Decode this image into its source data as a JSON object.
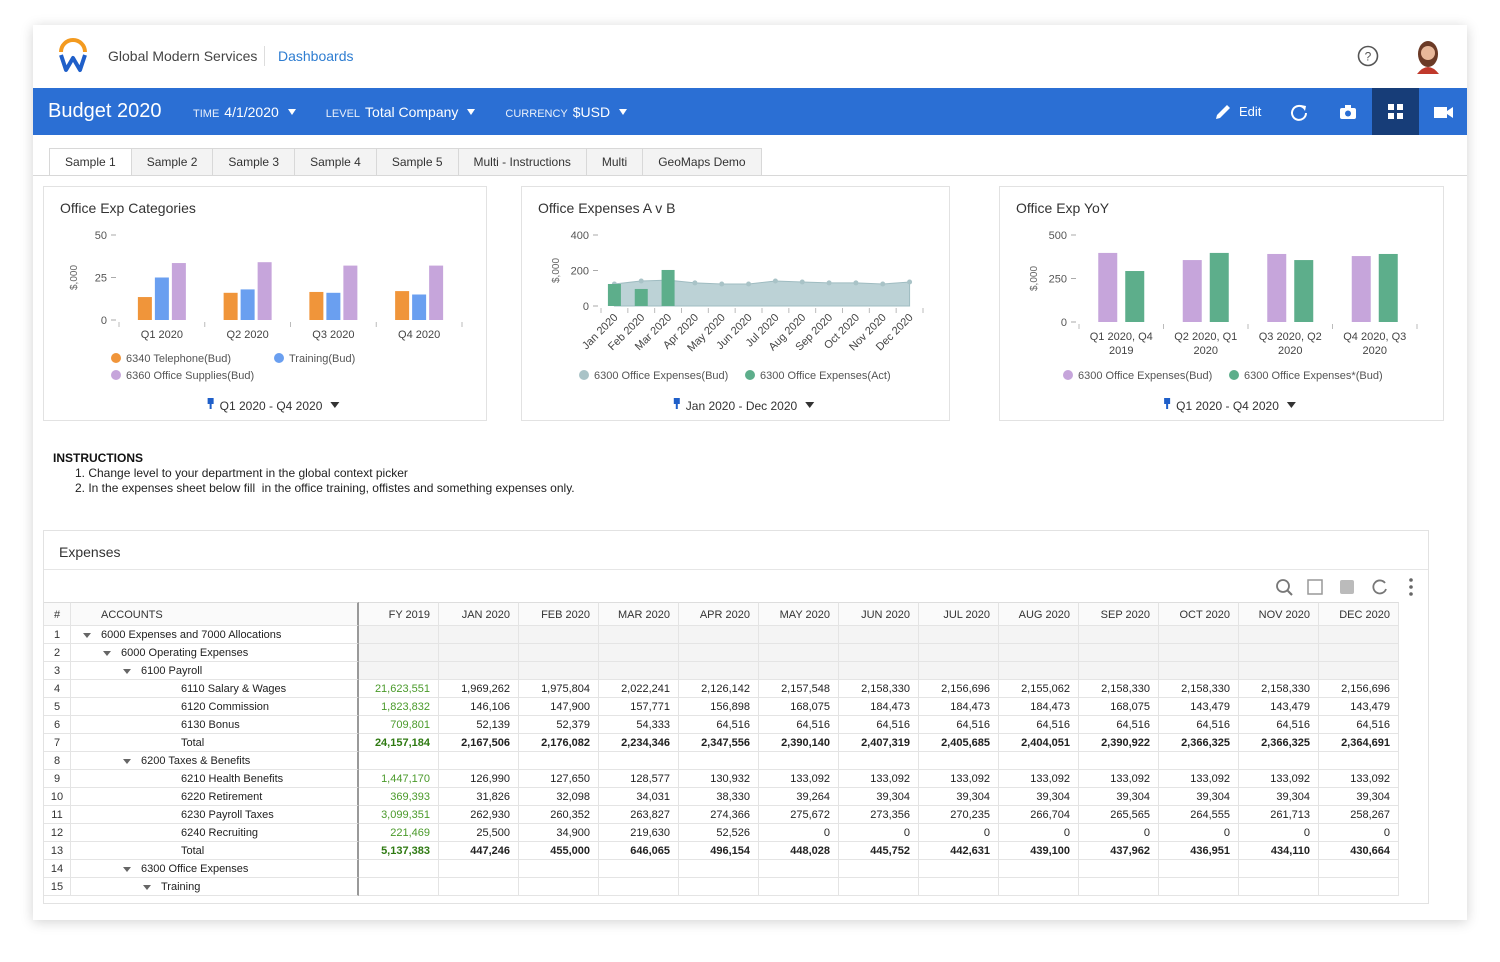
{
  "header": {
    "company": "Global Modern Services",
    "link": "Dashboards"
  },
  "toolbar": {
    "title": "Budget 2020",
    "filters": [
      {
        "label": "TIME",
        "value": "4/1/2020"
      },
      {
        "label": "LEVEL",
        "value": "Total Company"
      },
      {
        "label": "CURRENCY",
        "value": "$USD"
      }
    ],
    "edit": "Edit"
  },
  "tabs": [
    "Sample 1",
    "Sample 2",
    "Sample 3",
    "Sample 4",
    "Sample 5",
    "Multi - Instructions",
    "Multi",
    "GeoMaps Demo"
  ],
  "chart_data": [
    {
      "type": "bar",
      "title": "Office Exp Categories",
      "ylabel": "$,000",
      "categories": [
        "Q1 2020",
        "Q2 2020",
        "Q3 2020",
        "Q4 2020"
      ],
      "series": [
        {
          "name": "6340 Telephone(Bud)",
          "color": "#f0953a",
          "values": [
            13.5,
            16,
            16.5,
            17
          ]
        },
        {
          "name": "Training(Bud)",
          "color": "#6a9ff0",
          "values": [
            25,
            18,
            16,
            15
          ]
        },
        {
          "name": "6360 Office Supplies(Bud)",
          "color": "#c6a5db",
          "values": [
            33.5,
            34,
            32,
            32
          ]
        }
      ],
      "ylim": [
        0,
        50
      ],
      "yticks": [
        0,
        25,
        50
      ],
      "footer": "Q1 2020 - Q4 2020"
    },
    {
      "type": "combo",
      "title": "Office Expenses A v B",
      "ylabel": "$,000",
      "categories": [
        "Jan 2020",
        "Feb 2020",
        "Mar 2020",
        "Apr 2020",
        "May 2020",
        "Jun 2020",
        "Jul 2020",
        "Aug 2020",
        "Sep 2020",
        "Oct 2020",
        "Nov 2020",
        "Dec 2020"
      ],
      "series": [
        {
          "name": "6300 Office Expenses(Bud)",
          "type": "area",
          "color": "#bcd2d6",
          "values": [
            124,
            141,
            146,
            130,
            124,
            124,
            141,
            135,
            130,
            130,
            124,
            135
          ]
        },
        {
          "name": "6300 Office Expenses(Act)",
          "type": "bar",
          "color": "#5dae8b",
          "values": [
            124,
            96,
            203,
            null,
            null,
            null,
            null,
            null,
            null,
            null,
            null,
            null
          ]
        }
      ],
      "ylim": [
        0,
        400
      ],
      "yticks": [
        0,
        200,
        400
      ],
      "footer": "Jan 2020 - Dec 2020"
    },
    {
      "type": "bar",
      "title": "Office Exp YoY",
      "ylabel": "$,000",
      "categories": [
        "Q1 2020, Q4 2019",
        "Q2 2020, Q1 2020",
        "Q3 2020, Q2 2020",
        "Q4 2020, Q3 2020"
      ],
      "series": [
        {
          "name": "6300 Office Expenses(Bud)",
          "color": "#c6a5db",
          "values": [
            397,
            356,
            391,
            379
          ]
        },
        {
          "name": "6300 Office Expenses*(Bud)",
          "color": "#5dae8b",
          "values": [
            293,
            397,
            356,
            391
          ]
        }
      ],
      "ylim": [
        0,
        500
      ],
      "yticks": [
        0,
        250,
        500
      ],
      "footer": "Q1 2020 - Q4 2020"
    }
  ],
  "instructions": {
    "title": "INSTRUCTIONS",
    "items": [
      "1. Change level to your department in the global context picker",
      "2. In the expenses sheet below fill  in the office training, offistes and something expenses only."
    ]
  },
  "table": {
    "title": "Expenses",
    "columns": [
      "#",
      "ACCOUNTS",
      "FY 2019",
      "JAN 2020",
      "FEB 2020",
      "MAR 2020",
      "APR 2020",
      "MAY 2020",
      "JUN 2020",
      "JUL 2020",
      "AUG 2020",
      "SEP 2020",
      "OCT 2020",
      "NOV 2020",
      "DEC 2020"
    ],
    "rows": [
      [
        "1",
        "6000 Expenses and 7000 Allocations"
      ],
      [
        "2",
        "6000 Operating Expenses"
      ],
      [
        "3",
        "6100 Payroll"
      ],
      [
        "4",
        "6110 Salary & Wages",
        "21,623,551",
        "1,969,262",
        "1,975,804",
        "2,022,241",
        "2,126,142",
        "2,157,548",
        "2,158,330",
        "2,156,696",
        "2,155,062",
        "2,158,330",
        "2,158,330",
        "2,158,330",
        "2,156,696"
      ],
      [
        "5",
        "6120 Commission",
        "1,823,832",
        "146,106",
        "147,900",
        "157,771",
        "156,898",
        "168,075",
        "184,473",
        "184,473",
        "184,473",
        "168,075",
        "143,479",
        "143,479",
        "143,479"
      ],
      [
        "6",
        "6130 Bonus",
        "709,801",
        "52,139",
        "52,379",
        "54,333",
        "64,516",
        "64,516",
        "64,516",
        "64,516",
        "64,516",
        "64,516",
        "64,516",
        "64,516",
        "64,516"
      ],
      [
        "7",
        "Total",
        "24,157,184",
        "2,167,506",
        "2,176,082",
        "2,234,346",
        "2,347,556",
        "2,390,140",
        "2,407,319",
        "2,405,685",
        "2,404,051",
        "2,390,922",
        "2,366,325",
        "2,366,325",
        "2,364,691"
      ],
      [
        "8",
        "6200 Taxes & Benefits"
      ],
      [
        "9",
        "6210 Health Benefits",
        "1,447,170",
        "126,990",
        "127,650",
        "128,577",
        "130,932",
        "133,092",
        "133,092",
        "133,092",
        "133,092",
        "133,092",
        "133,092",
        "133,092",
        "133,092"
      ],
      [
        "10",
        "6220 Retirement",
        "369,393",
        "31,826",
        "32,098",
        "34,031",
        "38,330",
        "39,264",
        "39,304",
        "39,304",
        "39,304",
        "39,304",
        "39,304",
        "39,304",
        "39,304"
      ],
      [
        "11",
        "6230 Payroll Taxes",
        "3,099,351",
        "262,930",
        "260,352",
        "263,827",
        "274,366",
        "275,672",
        "273,356",
        "270,235",
        "266,704",
        "265,565",
        "264,555",
        "261,713",
        "258,267"
      ],
      [
        "12",
        "6240 Recruiting",
        "221,469",
        "25,500",
        "34,900",
        "219,630",
        "52,526",
        "0",
        "0",
        "0",
        "0",
        "0",
        "0",
        "0",
        "0"
      ],
      [
        "13",
        "Total",
        "5,137,383",
        "447,246",
        "455,000",
        "646,065",
        "496,154",
        "448,028",
        "445,752",
        "442,631",
        "439,100",
        "437,962",
        "436,951",
        "434,110",
        "430,664"
      ],
      [
        "14",
        "6300 Office Expenses"
      ],
      [
        "15",
        "Training"
      ]
    ]
  }
}
